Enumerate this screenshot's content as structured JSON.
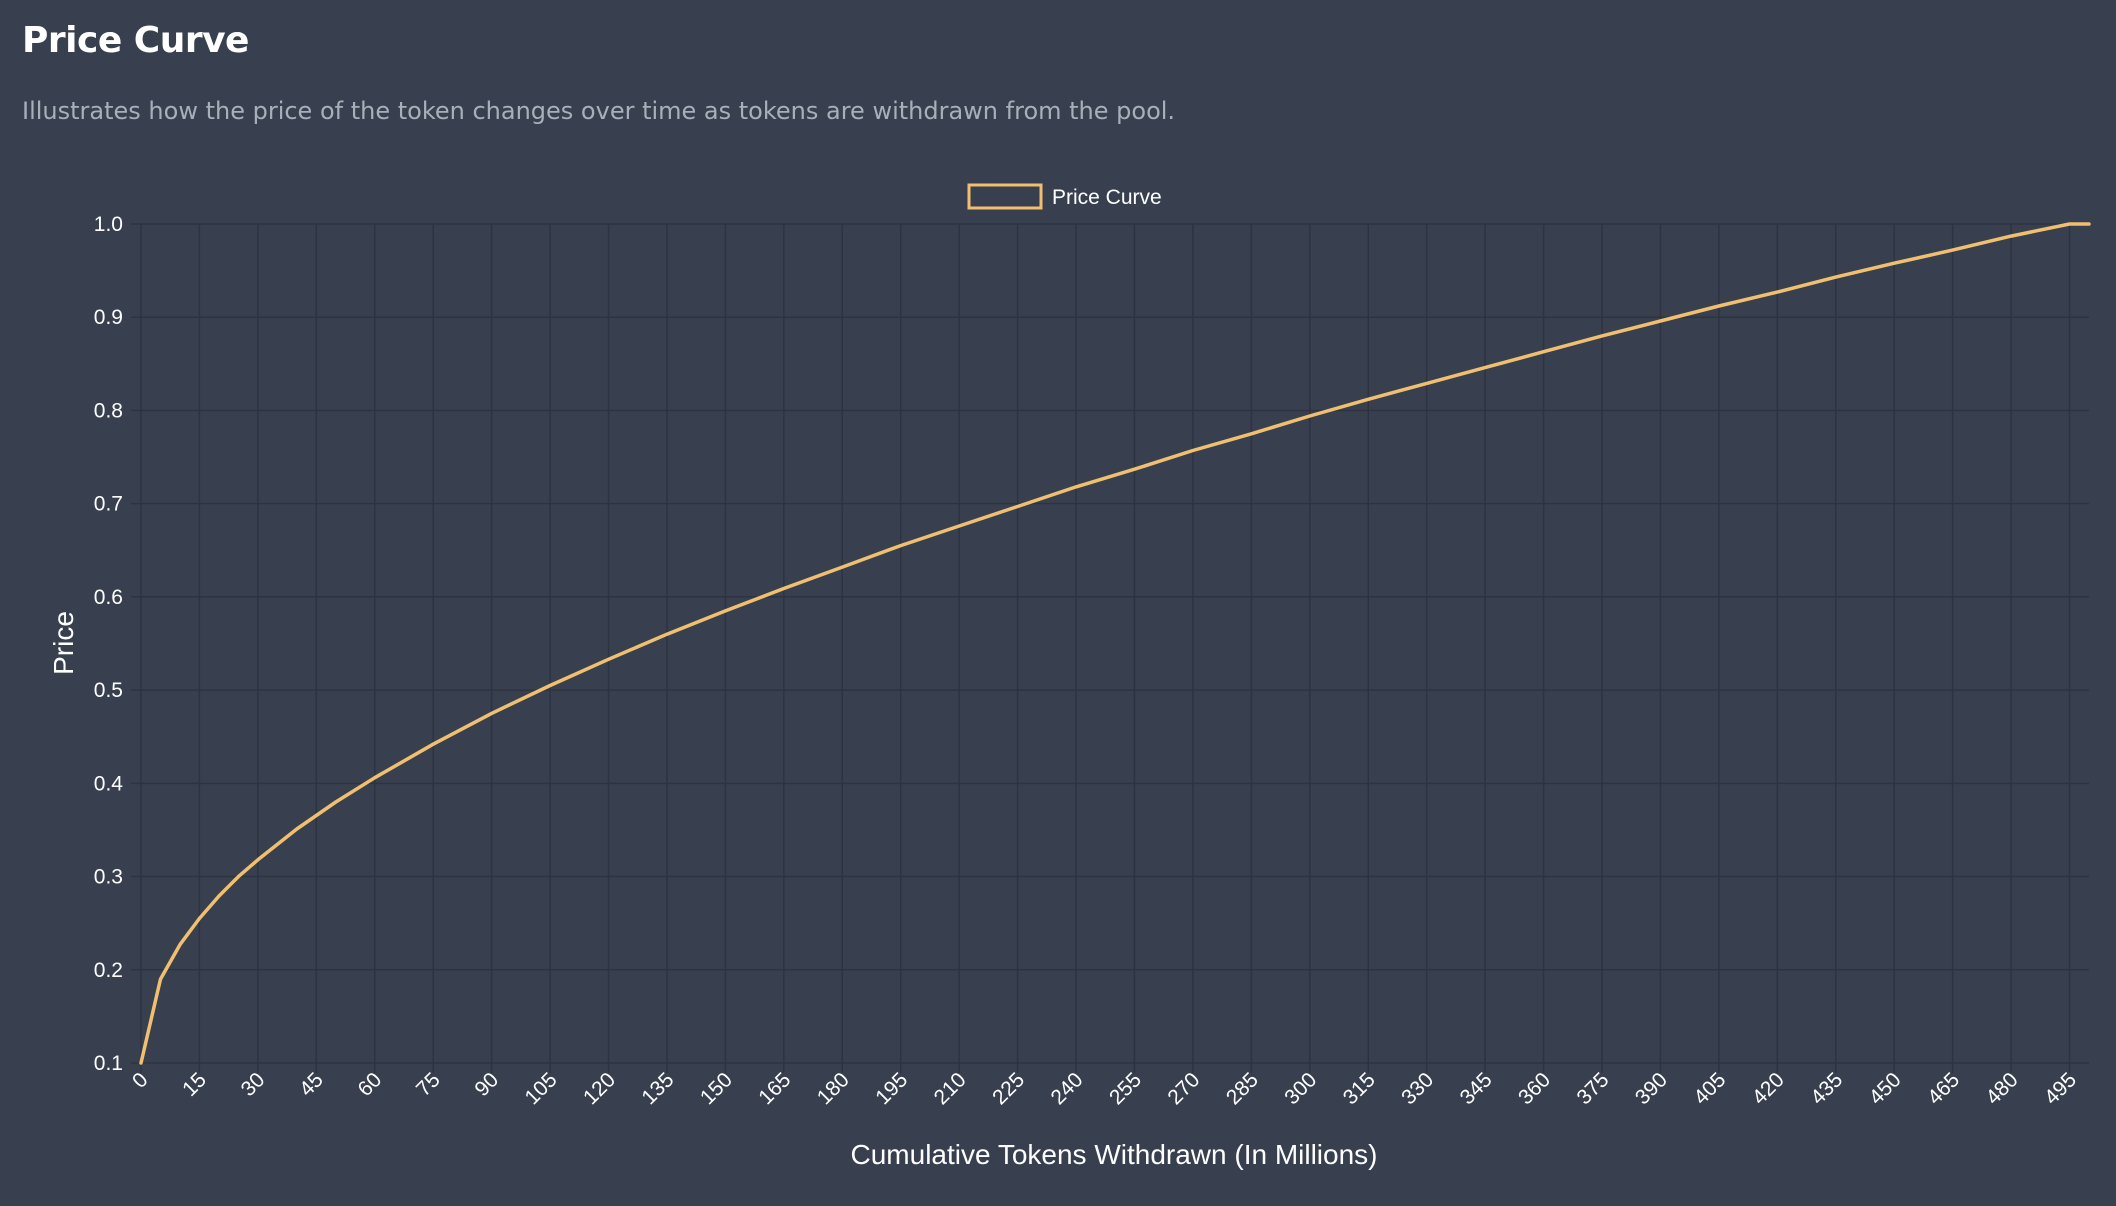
{
  "page": {
    "title": "Price Curve",
    "subtitle": "Illustrates how the price of the token changes over time as tokens are withdrawn from the pool."
  },
  "colors": {
    "background": "#384050",
    "line": "#f0c070",
    "grid": "#2d3340",
    "text": "#ffffff",
    "subtitle": "#a9afb9"
  },
  "chart_data": {
    "type": "line",
    "title": "",
    "xlabel": "Cumulative Tokens Withdrawn (In Millions)",
    "ylabel": "Price",
    "legend": {
      "position": "top-center",
      "entries": [
        "Price Curve"
      ]
    },
    "grid": true,
    "xlim": [
      0,
      500
    ],
    "ylim": [
      0.1,
      1.0
    ],
    "x_ticks": [
      0,
      15,
      30,
      45,
      60,
      75,
      90,
      105,
      120,
      135,
      150,
      165,
      180,
      195,
      210,
      225,
      240,
      255,
      270,
      285,
      300,
      315,
      330,
      345,
      360,
      375,
      390,
      405,
      420,
      435,
      450,
      465,
      480,
      495
    ],
    "x_tick_labels": [
      "0",
      "15",
      "30",
      "45",
      "60",
      "75",
      "90",
      "105",
      "120",
      "135",
      "150",
      "165",
      "180",
      "195",
      "210",
      "225",
      "240",
      "255",
      "270",
      "285",
      "300",
      "315",
      "330",
      "345",
      "360",
      "375",
      "390",
      "405",
      "420",
      "435",
      "450",
      "465",
      "480",
      "495"
    ],
    "y_ticks": [
      0.1,
      0.2,
      0.3,
      0.4,
      0.5,
      0.6,
      0.7,
      0.8,
      0.9,
      1.0
    ],
    "y_tick_labels": [
      "0.1",
      "0.2",
      "0.3",
      "0.4",
      "0.5",
      "0.6",
      "0.7",
      "0.8",
      "0.9",
      "1.0"
    ],
    "series": [
      {
        "name": "Price Curve",
        "x": [
          0,
          5,
          10,
          15,
          20,
          25,
          30,
          40,
          50,
          60,
          75,
          90,
          105,
          120,
          135,
          150,
          165,
          180,
          195,
          210,
          225,
          240,
          255,
          270,
          285,
          300,
          315,
          330,
          345,
          360,
          375,
          390,
          405,
          420,
          435,
          450,
          465,
          480,
          495,
          500
        ],
        "y": [
          0.1,
          0.19,
          0.227,
          0.255,
          0.279,
          0.3,
          0.318,
          0.351,
          0.38,
          0.406,
          0.442,
          0.475,
          0.505,
          0.533,
          0.56,
          0.585,
          0.609,
          0.632,
          0.655,
          0.676,
          0.697,
          0.718,
          0.737,
          0.757,
          0.775,
          0.794,
          0.812,
          0.829,
          0.846,
          0.863,
          0.88,
          0.896,
          0.912,
          0.927,
          0.943,
          0.958,
          0.972,
          0.987,
          1.0,
          1.0
        ]
      }
    ]
  }
}
